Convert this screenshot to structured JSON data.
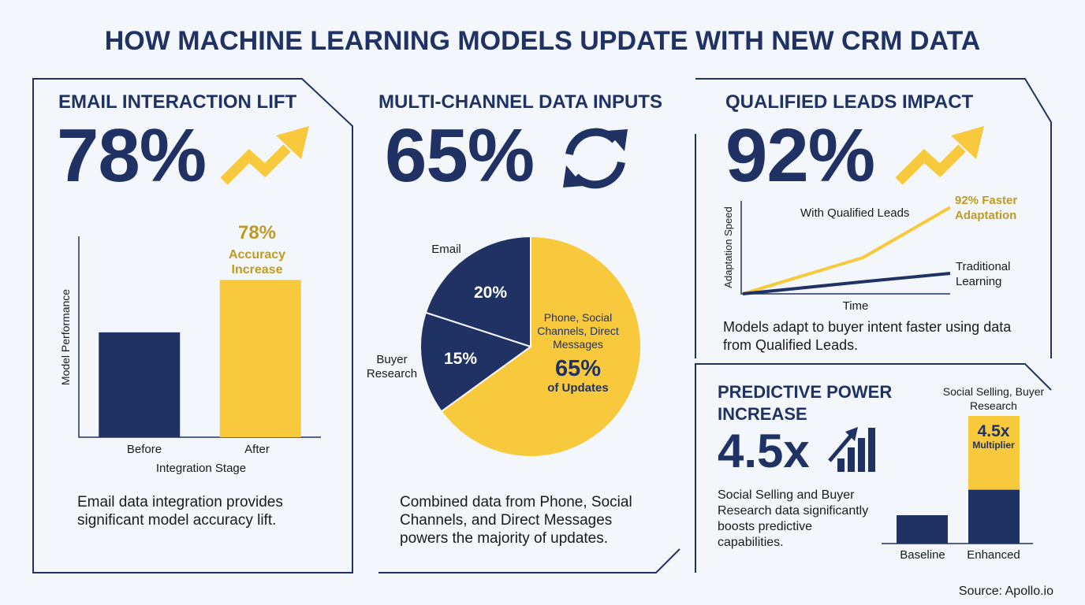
{
  "title": "HOW MACHINE LEARNING MODELS UPDATE WITH NEW CRM DATA",
  "source": "Source: Apollo.io",
  "chart_data": [
    {
      "type": "bar",
      "title": "EMAIL INTERACTION LIFT",
      "stat": "78%",
      "categories": [
        "Before",
        "After"
      ],
      "values": [
        52,
        78
      ],
      "colors": [
        "#1f3263",
        "#f8c93c"
      ],
      "ylim": [
        0,
        100
      ],
      "xlabel": "Integration Stage",
      "ylabel": "Model Performance",
      "annotations": [
        "78%",
        "Accuracy Increase"
      ],
      "caption": "Email data integration provides significant model accuracy lift."
    },
    {
      "type": "pie",
      "title": "MULTI-CHANNEL DATA INPUTS",
      "stat": "65%",
      "categories": [
        "Phone, Social Channels, Direct Messages",
        "Buyer Research",
        "Email"
      ],
      "values": [
        65,
        15,
        20
      ],
      "value_labels": [
        "65%",
        "15%",
        "20%"
      ],
      "colors": [
        "#f8c93c",
        "#1f3263",
        "#1f3263"
      ],
      "annotations": [
        "of Updates"
      ],
      "caption": "Combined data from Phone, Social Channels, and Direct Messages powers the majority of updates."
    },
    {
      "type": "line",
      "title": "QUALIFIED LEADS IMPACT",
      "stat": "92%",
      "x": [
        0,
        58,
        100
      ],
      "xlim": [
        0,
        100
      ],
      "ylim": [
        0,
        100
      ],
      "series": [
        {
          "name": "With Qualified Leads",
          "color": "#f8c93c",
          "values": [
            0,
            39,
            93
          ]
        },
        {
          "name": "Traditional Learning",
          "color": "#1f3263",
          "values": [
            0,
            13,
            22
          ]
        }
      ],
      "xlabel": "Time",
      "ylabel": "Adaptation Speed",
      "annotations": [
        "92% Faster Adaptation"
      ],
      "caption": "Models adapt to buyer intent faster using data from Qualified Leads."
    },
    {
      "type": "bar",
      "stacked": true,
      "title": "PREDICTIVE POWER INCREASE",
      "stat": "4.5x",
      "categories": [
        "Baseline",
        "Enhanced"
      ],
      "series": [
        {
          "color": "#1f3263",
          "values": [
            1,
            1.9
          ]
        },
        {
          "name": "Social Selling, Buyer Research",
          "color": "#f8c93c",
          "values": [
            null,
            2.6
          ]
        }
      ],
      "ylim": [
        0,
        4.5
      ],
      "annotations": [
        "4.5x",
        "Multiplier"
      ],
      "caption": "Social Selling and Buyer Research data significantly boosts predictive capabilities."
    }
  ]
}
